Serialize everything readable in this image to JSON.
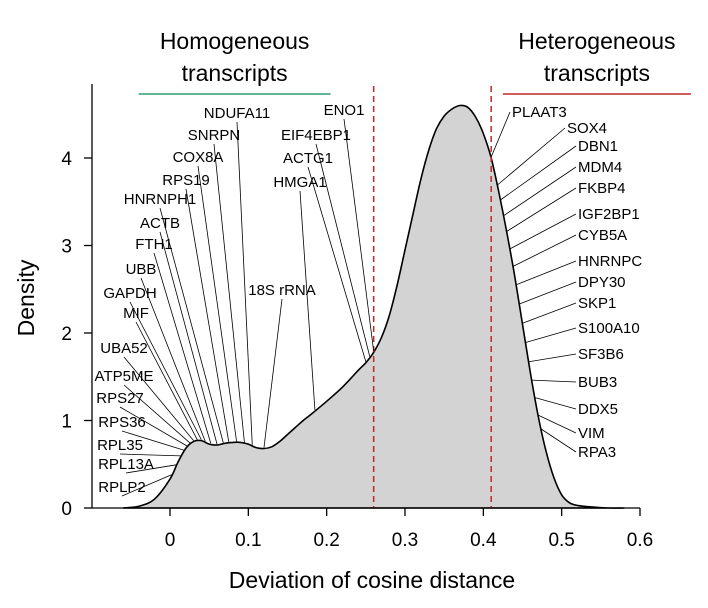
{
  "chart_data": {
    "type": "area",
    "xlabel": "Deviation of cosine distance",
    "ylabel": "Density",
    "xlim": [
      -0.1,
      0.61
    ],
    "ylim": [
      0,
      4.85
    ],
    "x_ticks": [
      0,
      0.1,
      0.2,
      0.3,
      0.4,
      0.5,
      0.6
    ],
    "x_tick_labels": [
      "0",
      "0.1",
      "0.2",
      "0.3",
      "0.4",
      "0.5",
      "0.6"
    ],
    "y_ticks": [
      0,
      1,
      2,
      3,
      4
    ],
    "y_tick_labels": [
      "0",
      "1",
      "2",
      "3",
      "4"
    ],
    "grid": false,
    "series": [
      {
        "x": [
          -0.06,
          -0.04,
          -0.02,
          0.0,
          0.01,
          0.02,
          0.03,
          0.04,
          0.05,
          0.06,
          0.07,
          0.08,
          0.09,
          0.1,
          0.11,
          0.12,
          0.13,
          0.14,
          0.15,
          0.16,
          0.17,
          0.18,
          0.2,
          0.22,
          0.24,
          0.25,
          0.26,
          0.27,
          0.28,
          0.29,
          0.3,
          0.31,
          0.32,
          0.33,
          0.34,
          0.35,
          0.36,
          0.37,
          0.38,
          0.39,
          0.4,
          0.41,
          0.42,
          0.43,
          0.44,
          0.45,
          0.46,
          0.47,
          0.48,
          0.49,
          0.5,
          0.51,
          0.52,
          0.54,
          0.56,
          0.58
        ],
        "y": [
          0.0,
          0.02,
          0.1,
          0.33,
          0.52,
          0.68,
          0.76,
          0.77,
          0.73,
          0.72,
          0.74,
          0.75,
          0.75,
          0.73,
          0.69,
          0.68,
          0.7,
          0.76,
          0.84,
          0.92,
          1.0,
          1.07,
          1.22,
          1.38,
          1.57,
          1.66,
          1.78,
          1.95,
          2.2,
          2.55,
          2.95,
          3.35,
          3.75,
          4.08,
          4.33,
          4.48,
          4.56,
          4.6,
          4.58,
          4.47,
          4.28,
          4.0,
          3.6,
          3.15,
          2.65,
          2.1,
          1.55,
          1.05,
          0.65,
          0.35,
          0.15,
          0.06,
          0.03,
          0.01,
          0.0,
          0.0
        ]
      }
    ],
    "thresholds": [
      0.26,
      0.41
    ],
    "threshold_color": "#c0262b",
    "homogeneous_color": "#2e9e73",
    "heterogeneous_color": "#c0262b",
    "fill_color": "#d3d3d3",
    "groups": [
      {
        "title_line1": "Homogeneous",
        "title_line2": "transcripts",
        "x_range": [
          -0.04,
          0.205
        ],
        "color": "#2e9e73"
      },
      {
        "title_line1": "Heterogeneous",
        "title_line2": "transcripts",
        "x_range": [
          0.425,
          0.665
        ],
        "color": "#c0262b"
      }
    ],
    "annotations": [
      {
        "text": "NDUFA11",
        "x": 0.105
      },
      {
        "text": "SNRPN",
        "x": 0.095
      },
      {
        "text": "COX8A",
        "x": 0.085
      },
      {
        "text": "RPS19",
        "x": 0.075
      },
      {
        "text": "HNRNPH1",
        "x": 0.068
      },
      {
        "text": "ACTB",
        "x": 0.06
      },
      {
        "text": "FTH1",
        "x": 0.052
      },
      {
        "text": "UBB",
        "x": 0.045
      },
      {
        "text": "GAPDH",
        "x": 0.04
      },
      {
        "text": "MIF",
        "x": 0.035
      },
      {
        "text": "UBA52",
        "x": 0.03
      },
      {
        "text": "ATP5ME",
        "x": 0.026
      },
      {
        "text": "RPS27",
        "x": 0.022
      },
      {
        "text": "RPS36",
        "x": 0.018
      },
      {
        "text": "RPL35",
        "x": 0.014
      },
      {
        "text": "RPL13A",
        "x": 0.008
      },
      {
        "text": "RPLP2",
        "x": 0.002
      },
      {
        "text": "18S rRNA",
        "x": 0.12,
        "color": "#d9302b"
      },
      {
        "text": "ENO1",
        "x": 0.26
      },
      {
        "text": "EIF4EBP1",
        "x": 0.255
      },
      {
        "text": "ACTG1",
        "x": 0.25
      },
      {
        "text": "HMGA1",
        "x": 0.185
      },
      {
        "text": "PLAAT3",
        "x": 0.41
      },
      {
        "text": "SOX4",
        "x": 0.418
      },
      {
        "text": "DBN1",
        "x": 0.422
      },
      {
        "text": "MDM4",
        "x": 0.426
      },
      {
        "text": "FKBP4",
        "x": 0.43
      },
      {
        "text": "IGF2BP1",
        "x": 0.434
      },
      {
        "text": "CYB5A",
        "x": 0.438
      },
      {
        "text": "HNRNPC",
        "x": 0.442
      },
      {
        "text": "DPY30",
        "x": 0.446
      },
      {
        "text": "SKP1",
        "x": 0.45
      },
      {
        "text": "S100A10",
        "x": 0.454
      },
      {
        "text": "SF3B6",
        "x": 0.458
      },
      {
        "text": "BUB3",
        "x": 0.462
      },
      {
        "text": "DDX5",
        "x": 0.466
      },
      {
        "text": "VIM",
        "x": 0.47
      },
      {
        "text": "RPA3",
        "x": 0.474
      }
    ]
  }
}
